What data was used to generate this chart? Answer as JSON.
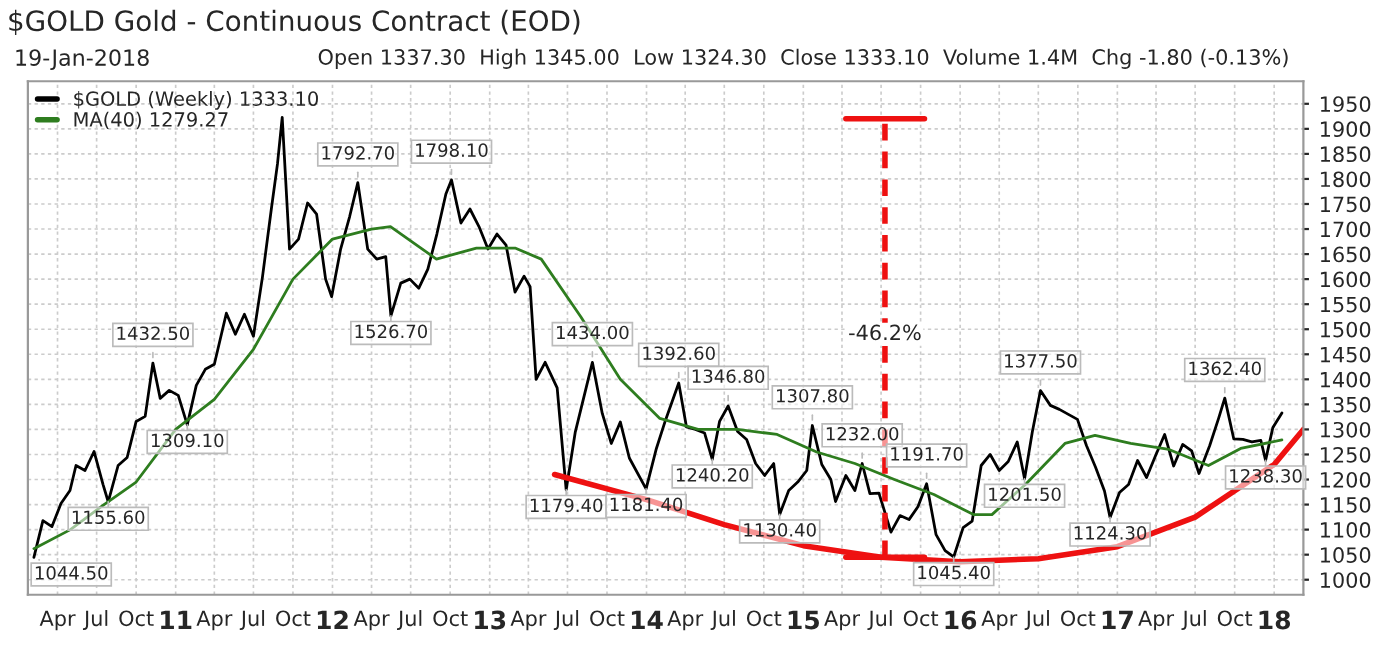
{
  "chart_data": {
    "type": "line",
    "title": "$GOLD Gold - Continuous Contract (EOD)",
    "subtitle": "19-Jan-2018",
    "annotations": [
      "Open 1337.30  High 1345.00  Low 1324.30  Close 1333.10  Volume 1.4M  Chg -1.80 (-0.13%)",
      {
        "text": "1044.50",
        "x": "2010-02-05",
        "y": 1044.5
      },
      {
        "text": "1155.60",
        "x": "2010-07-28",
        "y": 1155.6
      },
      {
        "text": "1432.50",
        "x": "2010-11-09",
        "y": 1432.5
      },
      {
        "text": "1309.10",
        "x": "2011-01-28",
        "y": 1309.1
      },
      {
        "text": "1792.70",
        "x": "2012-02-29",
        "y": 1792.7
      },
      {
        "text": "1526.70",
        "x": "2012-05-16",
        "y": 1526.7
      },
      {
        "text": "1798.10",
        "x": "2012-10-04",
        "y": 1798.1
      },
      {
        "text": "1179.40",
        "x": "2013-06-28",
        "y": 1179.4
      },
      {
        "text": "1434.00",
        "x": "2013-08-28",
        "y": 1434.0
      },
      {
        "text": "1181.40",
        "x": "2013-12-31",
        "y": 1181.4
      },
      {
        "text": "1392.60",
        "x": "2014-03-17",
        "y": 1392.6
      },
      {
        "text": "1240.20",
        "x": "2014-06-03",
        "y": 1240.2
      },
      {
        "text": "1346.80",
        "x": "2014-07-10",
        "y": 1346.8
      },
      {
        "text": "1130.40",
        "x": "2014-11-07",
        "y": 1130.4
      },
      {
        "text": "1307.80",
        "x": "2015-01-22",
        "y": 1307.8
      },
      {
        "text": "1232.00",
        "x": "2015-05-18",
        "y": 1232.0
      },
      {
        "text": "1191.70",
        "x": "2015-10-15",
        "y": 1191.7
      },
      {
        "text": "1045.40",
        "x": "2015-12-17",
        "y": 1045.4
      },
      {
        "text": "1201.50",
        "x": "2016-05-30",
        "y": 1201.5
      },
      {
        "text": "1377.50",
        "x": "2016-07-06",
        "y": 1377.5
      },
      {
        "text": "1124.30",
        "x": "2016-12-15",
        "y": 1124.3
      },
      {
        "text": "1362.40",
        "x": "2017-09-08",
        "y": 1362.4
      },
      {
        "text": "1238.30",
        "x": "2017-12-12",
        "y": 1238.3
      },
      {
        "text": "-46.2%",
        "x": "2015-07-10",
        "y": 1490
      }
    ],
    "series": [
      {
        "name": "$GOLD (Weekly) 1333.10",
        "color": "#000000",
        "x": [
          "2010-02-05",
          "2010-02-26",
          "2010-03-19",
          "2010-04-09",
          "2010-04-30",
          "2010-05-14",
          "2010-06-04",
          "2010-06-25",
          "2010-07-16",
          "2010-07-28",
          "2010-08-20",
          "2010-09-10",
          "2010-10-01",
          "2010-10-22",
          "2010-11-09",
          "2010-11-26",
          "2010-12-17",
          "2011-01-07",
          "2011-01-28",
          "2011-02-18",
          "2011-03-11",
          "2011-04-01",
          "2011-04-29",
          "2011-05-20",
          "2011-06-10",
          "2011-07-01",
          "2011-07-22",
          "2011-08-12",
          "2011-08-26",
          "2011-09-06",
          "2011-09-23",
          "2011-10-14",
          "2011-11-04",
          "2011-11-25",
          "2011-12-16",
          "2011-12-30",
          "2012-01-20",
          "2012-02-10",
          "2012-02-29",
          "2012-03-23",
          "2012-04-13",
          "2012-05-04",
          "2012-05-16",
          "2012-06-08",
          "2012-06-29",
          "2012-07-20",
          "2012-08-10",
          "2012-08-31",
          "2012-09-21",
          "2012-10-04",
          "2012-10-26",
          "2012-11-16",
          "2012-12-07",
          "2012-12-28",
          "2013-01-18",
          "2013-02-08",
          "2013-03-01",
          "2013-03-22",
          "2013-04-05",
          "2013-04-19",
          "2013-05-10",
          "2013-06-07",
          "2013-06-28",
          "2013-07-19",
          "2013-08-28",
          "2013-09-20",
          "2013-10-11",
          "2013-11-01",
          "2013-11-22",
          "2013-12-31",
          "2014-01-24",
          "2014-02-14",
          "2014-03-17",
          "2014-04-04",
          "2014-04-25",
          "2014-05-16",
          "2014-06-03",
          "2014-06-20",
          "2014-07-10",
          "2014-08-01",
          "2014-08-22",
          "2014-09-12",
          "2014-10-03",
          "2014-10-24",
          "2014-11-07",
          "2014-11-28",
          "2014-12-19",
          "2015-01-09",
          "2015-01-22",
          "2015-02-13",
          "2015-03-06",
          "2015-03-17",
          "2015-04-10",
          "2015-05-01",
          "2015-05-18",
          "2015-06-05",
          "2015-06-26",
          "2015-07-24",
          "2015-08-14",
          "2015-09-04",
          "2015-09-25",
          "2015-10-15",
          "2015-11-06",
          "2015-11-27",
          "2015-12-17",
          "2016-01-08",
          "2016-01-29",
          "2016-02-19",
          "2016-03-11",
          "2016-04-01",
          "2016-04-22",
          "2016-05-13",
          "2016-05-30",
          "2016-06-17",
          "2016-07-06",
          "2016-07-29",
          "2016-08-19",
          "2016-09-09",
          "2016-09-30",
          "2016-10-21",
          "2016-11-11",
          "2016-12-02",
          "2016-12-15",
          "2017-01-06",
          "2017-01-27",
          "2017-02-17",
          "2017-03-10",
          "2017-03-31",
          "2017-04-21",
          "2017-05-12",
          "2017-06-02",
          "2017-06-23",
          "2017-07-10",
          "2017-08-04",
          "2017-08-25",
          "2017-09-08",
          "2017-09-29",
          "2017-10-20",
          "2017-11-10",
          "2017-12-01",
          "2017-12-12",
          "2017-12-29",
          "2018-01-19"
        ],
        "values": [
          1044.5,
          1118,
          1106,
          1152,
          1178,
          1228,
          1218,
          1256,
          1190,
          1155.6,
          1228,
          1244,
          1316,
          1326,
          1432.5,
          1362,
          1378,
          1368,
          1309.1,
          1388,
          1420,
          1430,
          1532,
          1490,
          1530,
          1486,
          1604,
          1742,
          1830,
          1923,
          1660,
          1680,
          1752,
          1730,
          1600,
          1565,
          1660,
          1725,
          1792.7,
          1660,
          1640,
          1645,
          1526.7,
          1592,
          1600,
          1582,
          1620,
          1690,
          1770,
          1798.1,
          1712,
          1740,
          1705,
          1660,
          1690,
          1668,
          1574,
          1606,
          1585,
          1400,
          1434,
          1383,
          1179.4,
          1294,
          1434.0,
          1332,
          1272,
          1315,
          1243,
          1181.4,
          1262,
          1318,
          1392.6,
          1305,
          1300,
          1293,
          1240.2,
          1316,
          1346.8,
          1296,
          1280,
          1232,
          1208,
          1232,
          1130.4,
          1178,
          1195,
          1218,
          1307.8,
          1230,
          1200,
          1156,
          1208,
          1178,
          1232.0,
          1172,
          1173,
          1095,
          1128,
          1120,
          1146,
          1191.7,
          1090,
          1058,
          1045.4,
          1104,
          1117,
          1228,
          1250,
          1218,
          1236,
          1275,
          1201.5,
          1295,
          1377.5,
          1348,
          1340,
          1330,
          1320,
          1268,
          1225,
          1177,
          1124.3,
          1174,
          1190,
          1238,
          1204,
          1248,
          1290,
          1227,
          1270,
          1257,
          1212,
          1268,
          1323,
          1362.4,
          1281,
          1280,
          1275,
          1278,
          1238.3,
          1304,
          1333
        ]
      },
      {
        "name": "MA(40) 1279.27",
        "color": "#2e7d1f",
        "x": [
          "2010-02-05",
          "2010-05-01",
          "2010-07-15",
          "2010-10-01",
          "2011-01-01",
          "2011-04-01",
          "2011-07-01",
          "2011-10-01",
          "2012-01-01",
          "2012-04-01",
          "2012-05-15",
          "2012-08-30",
          "2012-12-01",
          "2013-03-01",
          "2013-05-01",
          "2013-08-01",
          "2013-11-01",
          "2014-02-01",
          "2014-05-01",
          "2014-08-01",
          "2014-11-01",
          "2015-02-01",
          "2015-05-01",
          "2015-08-01",
          "2015-11-01",
          "2016-02-01",
          "2016-03-15",
          "2016-06-01",
          "2016-09-01",
          "2016-11-10",
          "2017-02-01",
          "2017-05-01",
          "2017-08-01",
          "2017-10-15",
          "2018-01-19"
        ],
        "values": [
          1062,
          1100,
          1148,
          1195,
          1300,
          1360,
          1460,
          1600,
          1680,
          1700,
          1705,
          1640,
          1662,
          1662,
          1640,
          1525,
          1400,
          1322,
          1300,
          1300,
          1290,
          1255,
          1232,
          1200,
          1170,
          1130,
          1130,
          1190,
          1272,
          1288,
          1272,
          1260,
          1228,
          1262,
          1279
        ]
      },
      {
        "color": "#ee1111",
        "x": [
          "2013-06-01",
          "2014-01-01",
          "2014-07-01",
          "2015-01-01",
          "2015-07-01",
          "2016-01-01",
          "2016-07-01",
          "2017-01-01",
          "2017-07-01",
          "2018-01-01",
          "2018-03-10"
        ],
        "values": [
          1210,
          1160,
          1110,
          1068,
          1045,
          1036,
          1042,
          1066,
          1125,
          1230,
          1300
        ]
      },
      {
        "color": "#ee1111",
        "line_style": "dashed",
        "x": [
          "2015-07-10",
          "2015-07-10"
        ],
        "values": [
          1045,
          1920
        ]
      },
      {
        "color": "#ee1111",
        "x": [
          "2015-04-10",
          "2015-10-10"
        ],
        "values": [
          1920,
          1920
        ]
      },
      {
        "color": "#ee1111",
        "x": [
          "2015-04-10",
          "2015-10-10"
        ],
        "values": [
          1045,
          1045
        ]
      }
    ],
    "xlim": [
      "2010-01-22",
      "2018-03-10"
    ],
    "xticks": [
      {
        "value": "2010-04-01",
        "label": "Apr"
      },
      {
        "value": "2010-07-01",
        "label": "Jul"
      },
      {
        "value": "2010-10-01",
        "label": "Oct"
      },
      {
        "value": "2011-01-01",
        "label": "11"
      },
      {
        "value": "2011-04-01",
        "label": "Apr"
      },
      {
        "value": "2011-07-01",
        "label": "Jul"
      },
      {
        "value": "2011-10-01",
        "label": "Oct"
      },
      {
        "value": "2012-01-01",
        "label": "12"
      },
      {
        "value": "2012-04-01",
        "label": "Apr"
      },
      {
        "value": "2012-07-01",
        "label": "Jul"
      },
      {
        "value": "2012-10-01",
        "label": "Oct"
      },
      {
        "value": "2013-01-01",
        "label": "13"
      },
      {
        "value": "2013-04-01",
        "label": "Apr"
      },
      {
        "value": "2013-07-01",
        "label": "Jul"
      },
      {
        "value": "2013-10-01",
        "label": "Oct"
      },
      {
        "value": "2014-01-01",
        "label": "14"
      },
      {
        "value": "2014-04-01",
        "label": "Apr"
      },
      {
        "value": "2014-07-01",
        "label": "Jul"
      },
      {
        "value": "2014-10-01",
        "label": "Oct"
      },
      {
        "value": "2015-01-01",
        "label": "15"
      },
      {
        "value": "2015-04-01",
        "label": "Apr"
      },
      {
        "value": "2015-07-01",
        "label": "Jul"
      },
      {
        "value": "2015-10-01",
        "label": "Oct"
      },
      {
        "value": "2016-01-01",
        "label": "16"
      },
      {
        "value": "2016-04-01",
        "label": "Apr"
      },
      {
        "value": "2016-07-01",
        "label": "Jul"
      },
      {
        "value": "2016-10-01",
        "label": "Oct"
      },
      {
        "value": "2017-01-01",
        "label": "17"
      },
      {
        "value": "2017-04-01",
        "label": "Apr"
      },
      {
        "value": "2017-07-01",
        "label": "Jul"
      },
      {
        "value": "2017-10-01",
        "label": "Oct"
      },
      {
        "value": "2018-01-01",
        "label": "18"
      }
    ],
    "ylim": [
      970,
      1995
    ],
    "yticks": [
      1000,
      1050,
      1100,
      1150,
      1200,
      1250,
      1300,
      1350,
      1400,
      1450,
      1500,
      1550,
      1600,
      1650,
      1700,
      1750,
      1800,
      1850,
      1900,
      1950
    ],
    "grid": true,
    "legend": "top left",
    "line_style": "solid",
    "marker": "none"
  }
}
